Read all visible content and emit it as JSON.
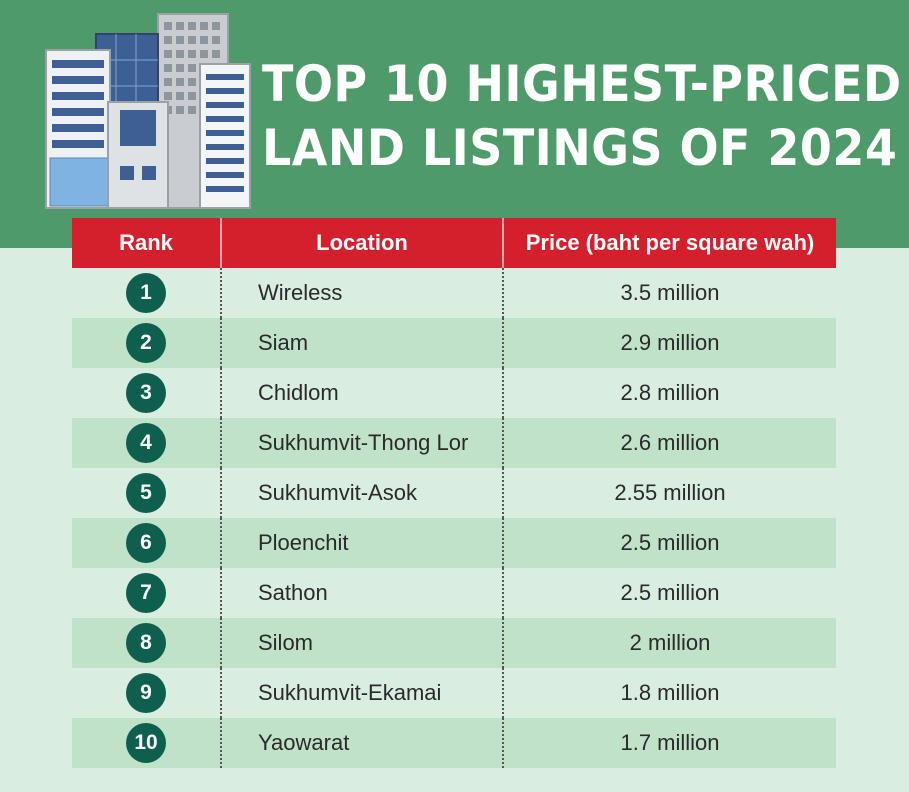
{
  "title": {
    "line1": "TOP 10 HIGHEST-PRICED",
    "line2": "LAND LISTINGS OF 2024"
  },
  "colors": {
    "banner": "#4f9a6a",
    "header": "#d41f2c",
    "badge": "#0e5f4e",
    "row_alt": "#bfe2c8",
    "background": "#d9ede0"
  },
  "table": {
    "headers": [
      "Rank",
      "Location",
      "Price (baht per square wah)"
    ],
    "rows": [
      {
        "rank": "1",
        "location": "Wireless",
        "price": "3.5 million"
      },
      {
        "rank": "2",
        "location": "Siam",
        "price": "2.9 million"
      },
      {
        "rank": "3",
        "location": "Chidlom",
        "price": "2.8 million"
      },
      {
        "rank": "4",
        "location": "Sukhumvit-Thong Lor",
        "price": "2.6 million"
      },
      {
        "rank": "5",
        "location": "Sukhumvit-Asok",
        "price": "2.55 million"
      },
      {
        "rank": "6",
        "location": "Ploenchit",
        "price": "2.5 million"
      },
      {
        "rank": "7",
        "location": "Sathon",
        "price": "2.5 million"
      },
      {
        "rank": "8",
        "location": "Silom",
        "price": "2 million"
      },
      {
        "rank": "9",
        "location": "Sukhumvit-Ekamai",
        "price": "1.8 million"
      },
      {
        "rank": "10",
        "location": "Yaowarat",
        "price": "1.7 million"
      }
    ]
  }
}
